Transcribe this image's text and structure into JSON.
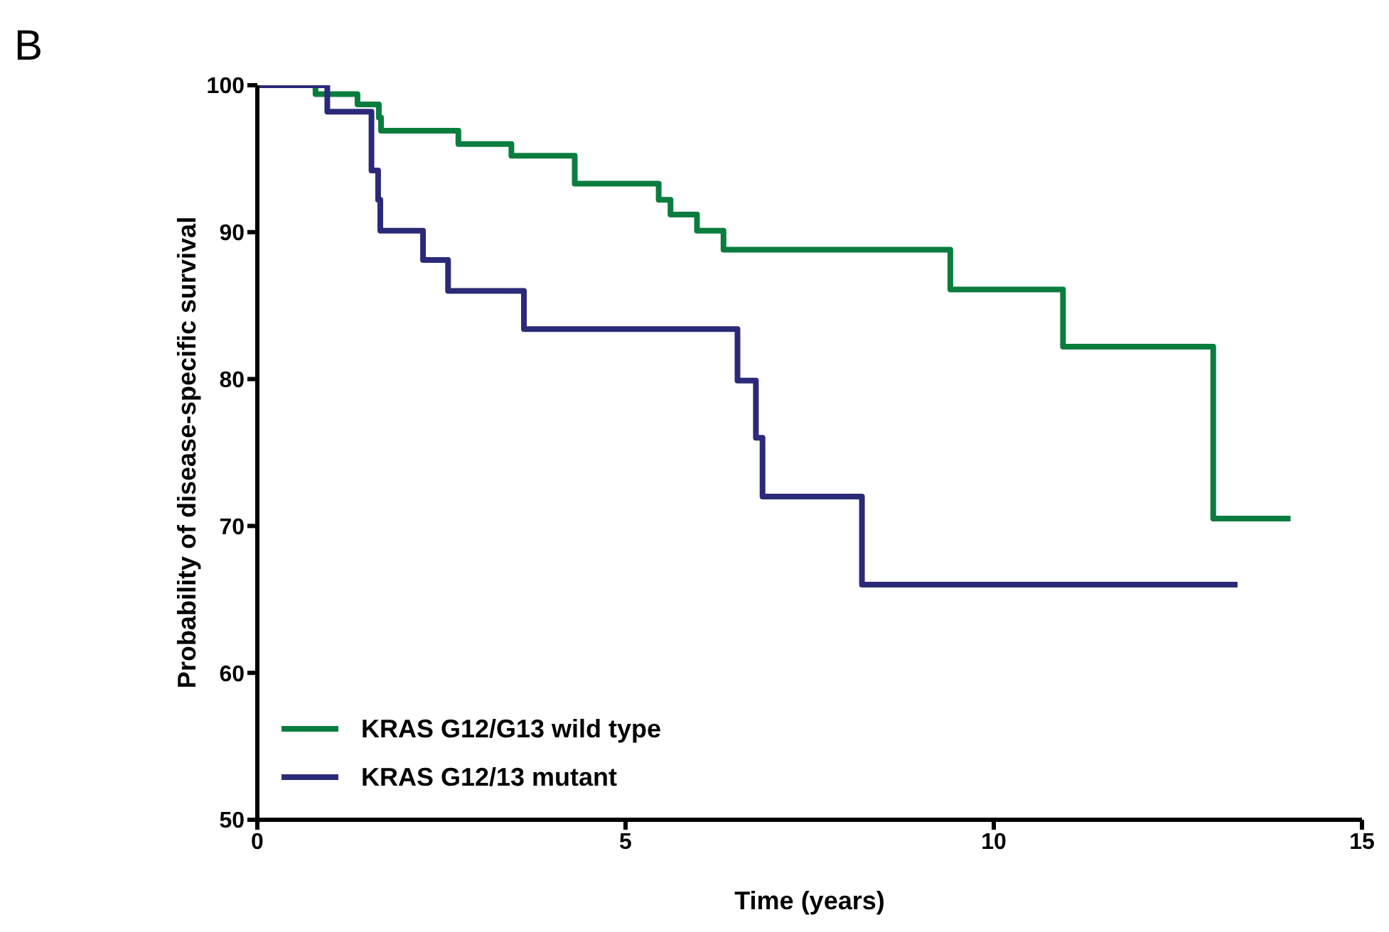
{
  "chart_data": {
    "type": "step",
    "title": "B",
    "xlabel": "Time (years)",
    "ylabel": "Probability of disease-specific survival",
    "xlim": [
      0,
      15
    ],
    "xticks": [
      0,
      5,
      10,
      15
    ],
    "ylim": [
      50,
      100
    ],
    "yticks": [
      50,
      60,
      70,
      80,
      90,
      100
    ],
    "grid": false,
    "legend": "bottom left",
    "series": [
      {
        "name": "KRAS G12/G13 wild type",
        "color": "#0a7d3e",
        "x": [
          0,
          0.79,
          1.36,
          1.65,
          1.68,
          2.73,
          3.45,
          4.31,
          5.45,
          5.61,
          5.97,
          6.33,
          9.41,
          10.94,
          12.98,
          14.03
        ],
        "values": [
          100,
          99.4,
          98.7,
          97.8,
          96.9,
          96.0,
          95.2,
          93.3,
          92.2,
          91.2,
          90.1,
          88.8,
          86.1,
          82.2,
          70.5,
          70.5
        ]
      },
      {
        "name": "KRAS G12/13 mutant",
        "color": "#2b2a78",
        "x": [
          0,
          0.95,
          1.55,
          1.64,
          1.67,
          2.25,
          2.59,
          3.62,
          6.52,
          6.77,
          6.86,
          8.21,
          13.31
        ],
        "values": [
          100,
          98.2,
          94.2,
          92.2,
          90.1,
          88.1,
          86.0,
          83.4,
          79.9,
          76.0,
          72.0,
          66.0,
          66.0
        ]
      }
    ]
  }
}
